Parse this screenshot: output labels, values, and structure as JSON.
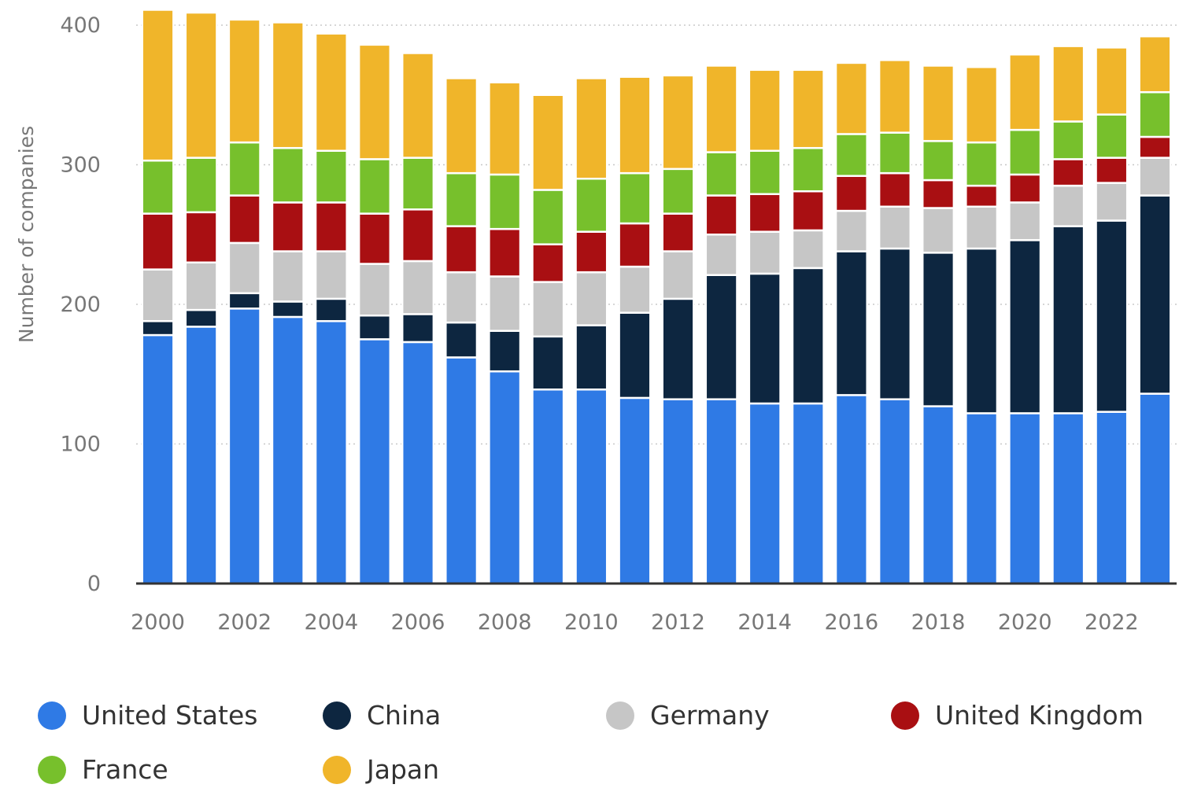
{
  "chart_data": {
    "type": "bar",
    "stacked": true,
    "title": "",
    "xlabel": "",
    "ylabel": "Number of companies",
    "ylim": [
      0,
      400
    ],
    "yticks": [
      0,
      100,
      200,
      300,
      400
    ],
    "grid": true,
    "legend": "bottom",
    "categories": [
      "2000",
      "2001",
      "2002",
      "2003",
      "2004",
      "2005",
      "2006",
      "2007",
      "2008",
      "2009",
      "2010",
      "2011",
      "2012",
      "2013",
      "2014",
      "2015",
      "2016",
      "2017",
      "2018",
      "2019",
      "2020",
      "2021",
      "2022",
      "2023"
    ],
    "xtick_labels": [
      "2000",
      "",
      "2002",
      "",
      "2004",
      "",
      "2006",
      "",
      "2008",
      "",
      "2010",
      "",
      "2012",
      "",
      "2014",
      "",
      "2016",
      "",
      "2018",
      "",
      "2020",
      "",
      "2022",
      ""
    ],
    "series": [
      {
        "name": "United States",
        "color": "#2f7ae5",
        "values": [
          178,
          184,
          197,
          191,
          188,
          175,
          173,
          162,
          152,
          139,
          139,
          133,
          132,
          132,
          129,
          129,
          135,
          132,
          127,
          122,
          122,
          122,
          123,
          136
        ]
      },
      {
        "name": "China",
        "color": "#0d2640",
        "values": [
          10,
          12,
          11,
          11,
          16,
          17,
          20,
          25,
          29,
          38,
          46,
          61,
          72,
          89,
          93,
          97,
          103,
          108,
          110,
          118,
          124,
          134,
          137,
          142
        ]
      },
      {
        "name": "Germany",
        "color": "#c6c6c6",
        "values": [
          37,
          34,
          36,
          36,
          34,
          37,
          38,
          36,
          39,
          39,
          38,
          33,
          34,
          29,
          30,
          27,
          29,
          30,
          32,
          30,
          27,
          29,
          27,
          27
        ]
      },
      {
        "name": "United Kingdom",
        "color": "#a90f12",
        "values": [
          40,
          36,
          34,
          35,
          35,
          36,
          37,
          33,
          34,
          27,
          29,
          31,
          27,
          28,
          27,
          28,
          25,
          24,
          20,
          15,
          20,
          19,
          18,
          15
        ]
      },
      {
        "name": "France",
        "color": "#77c02c",
        "values": [
          38,
          39,
          38,
          39,
          37,
          39,
          37,
          38,
          39,
          39,
          38,
          36,
          32,
          31,
          31,
          31,
          30,
          29,
          28,
          31,
          32,
          27,
          31,
          32
        ]
      },
      {
        "name": "Japan",
        "color": "#f0b52a",
        "values": [
          108,
          104,
          88,
          90,
          84,
          82,
          75,
          68,
          66,
          68,
          72,
          69,
          67,
          62,
          58,
          56,
          51,
          52,
          54,
          54,
          54,
          54,
          48,
          40
        ]
      }
    ]
  }
}
